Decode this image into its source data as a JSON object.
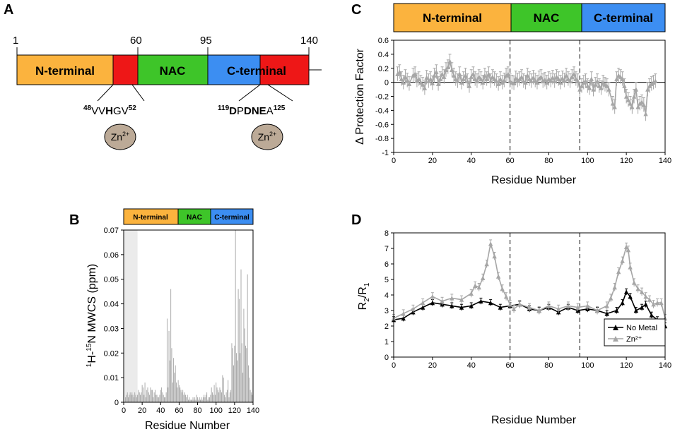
{
  "panel_labels": {
    "a": "A",
    "b": "B",
    "c": "C",
    "d": "D"
  },
  "panel_a": {
    "ruler_labels": [
      "1",
      "60",
      "95",
      "140"
    ],
    "domains": [
      "N-terminal",
      "NAC",
      "C-terminal"
    ],
    "motif_1": {
      "start": "48",
      "seq_a": "VV",
      "bold": "H",
      "seq_b": "GV",
      "end": "52"
    },
    "motif_2": {
      "start": "119",
      "bold_a": "D",
      "plain_a": "P",
      "bold_b": "DNE",
      "plain_b": "A",
      "end": "125"
    },
    "ion": {
      "base": "Zn",
      "sup": "2+"
    }
  },
  "bands": {
    "n_terminal": "N-terminal",
    "nac": "NAC",
    "c_terminal": "C-terminal"
  },
  "colors": {
    "n_terminal": "#FBB33E",
    "nac": "#3EC529",
    "c_terminal": "#3C8EF2",
    "motif": "#EE1717",
    "zinc": "#BCAA97",
    "series_gray": "#A6A6A6",
    "series_black": "#000000",
    "shade": "#EBEBEB"
  },
  "chart_data": [
    {
      "id": "B",
      "type": "bar",
      "title": "",
      "xlabel": "Residue Number",
      "ylabel_parts": {
        "sup1": "1",
        "mid": "H-",
        "sup2": "15",
        "rest": "N MWCS (ppm)"
      },
      "xlim": [
        0,
        140
      ],
      "ylim": [
        0,
        0.07
      ],
      "xticks": [
        "0",
        "20",
        "40",
        "60",
        "80",
        "100",
        "120",
        "140"
      ],
      "yticks": [
        "0",
        "0.01",
        "0.02",
        "0.03",
        "0.04",
        "0.05",
        "0.06",
        "0.07"
      ],
      "shaded_region": [
        0,
        15
      ],
      "x": [
        2,
        3,
        4,
        5,
        6,
        7,
        8,
        9,
        10,
        11,
        12,
        13,
        14,
        15,
        16,
        17,
        18,
        19,
        20,
        21,
        22,
        23,
        24,
        25,
        26,
        27,
        28,
        29,
        30,
        31,
        32,
        33,
        34,
        35,
        36,
        37,
        38,
        39,
        40,
        41,
        42,
        43,
        44,
        45,
        46,
        47,
        48,
        49,
        50,
        51,
        52,
        53,
        54,
        55,
        56,
        57,
        58,
        59,
        60,
        61,
        62,
        63,
        64,
        65,
        66,
        67,
        68,
        69,
        70,
        71,
        72,
        73,
        74,
        75,
        76,
        77,
        78,
        79,
        80,
        81,
        82,
        83,
        84,
        85,
        86,
        87,
        88,
        89,
        90,
        91,
        92,
        93,
        94,
        95,
        96,
        97,
        98,
        99,
        100,
        101,
        102,
        103,
        104,
        105,
        106,
        107,
        108,
        109,
        110,
        111,
        112,
        113,
        114,
        115,
        116,
        117,
        118,
        119,
        120,
        121,
        122,
        123,
        124,
        125,
        126,
        127,
        128,
        129,
        130,
        131,
        132,
        133,
        134,
        135,
        136,
        137,
        138,
        139,
        140
      ],
      "values": [
        0.002,
        0.003,
        0.004,
        0.002,
        0.003,
        0.004,
        0.003,
        0.004,
        0.003,
        0.002,
        0.004,
        0.003,
        0.002,
        0.003,
        0.005,
        0.004,
        0.003,
        0.004,
        0.007,
        0.006,
        0.003,
        0.008,
        0.002,
        0.005,
        0.006,
        0.004,
        0.003,
        0.006,
        0.005,
        0.005,
        0.002,
        0.004,
        0.005,
        0.003,
        0.003,
        0.002,
        0.002,
        0.003,
        0.005,
        0.006,
        0.004,
        0.003,
        0.002,
        0.002,
        0.004,
        0.034,
        0.006,
        0.029,
        0.017,
        0.046,
        0.022,
        0.008,
        0.018,
        0.012,
        0.015,
        0.008,
        0.006,
        0.009,
        0.007,
        0.006,
        0.005,
        0.004,
        0.005,
        0.003,
        0.004,
        0.003,
        0.002,
        0.003,
        0.001,
        0.002,
        0.001,
        0.001,
        0.001,
        0.002,
        0.001,
        0.002,
        0.001,
        0.003,
        0.002,
        0.001,
        0.002,
        0.001,
        0.002,
        0.001,
        0.002,
        0.003,
        0.002,
        0.003,
        0.004,
        0.001,
        0.002,
        0.002,
        0.003,
        0.006,
        0.004,
        0.003,
        0.007,
        0.003,
        0.008,
        0.006,
        0.005,
        0.004,
        0.006,
        0.005,
        0.004,
        0.011,
        0.01,
        0.003,
        0.002,
        0.004,
        0.005,
        0.009,
        0.002,
        0.004,
        0.005,
        0.024,
        0.022,
        0.015,
        0.023,
        0.07,
        0.02,
        0.017,
        0.046,
        0.042,
        0.02,
        0.054,
        0.024,
        0.012,
        0.038,
        0.03,
        0.023,
        0.022,
        0.052,
        0.015,
        0.01,
        0.005,
        0.004,
        0.003,
        0.005
      ]
    },
    {
      "id": "C",
      "type": "line",
      "title": "",
      "xlabel": "Residue Number",
      "ylabel": "Δ Protection Factor",
      "xlim": [
        0,
        140
      ],
      "ylim": [
        -1,
        0.6
      ],
      "xticks": [
        "0",
        "20",
        "40",
        "60",
        "80",
        "100",
        "120",
        "140"
      ],
      "yticks": [
        "0.6",
        "0.4",
        "0.2",
        "0",
        "-0.2",
        "-0.4",
        "-0.6",
        "-0.8",
        "-1"
      ],
      "vlines": [
        60,
        96
      ],
      "series": [
        {
          "name": "ΔPF",
          "x": [
            2,
            3,
            4,
            5,
            6,
            7,
            8,
            10,
            11,
            12,
            13,
            14,
            15,
            16,
            17,
            18,
            19,
            20,
            21,
            22,
            23,
            24,
            25,
            26,
            27,
            28,
            29,
            30,
            31,
            32,
            33,
            34,
            35,
            36,
            37,
            38,
            39,
            40,
            41,
            42,
            43,
            44,
            45,
            46,
            47,
            48,
            49,
            50,
            51,
            52,
            53,
            54,
            55,
            56,
            57,
            58,
            59,
            60,
            61,
            62,
            63,
            64,
            65,
            66,
            67,
            68,
            69,
            70,
            71,
            72,
            73,
            74,
            75,
            76,
            77,
            78,
            79,
            80,
            81,
            82,
            83,
            84,
            85,
            86,
            87,
            88,
            89,
            90,
            91,
            92,
            93,
            94,
            95,
            96,
            97,
            98,
            99,
            100,
            101,
            102,
            103,
            104,
            105,
            106,
            107,
            108,
            109,
            110,
            111,
            113,
            114,
            115,
            116,
            117,
            118,
            119,
            120,
            121,
            122,
            123,
            124,
            125,
            126,
            127,
            128,
            129,
            130,
            131,
            132,
            133,
            134,
            135
          ],
          "y": [
            0.12,
            0.15,
            0.05,
            0.0,
            0.08,
            0.03,
            -0.02,
            0.1,
            0.12,
            0.03,
            0.05,
            0.0,
            -0.03,
            -0.08,
            0.07,
            0.02,
            0.05,
            -0.01,
            0.1,
            0.15,
            -0.02,
            0.05,
            0.12,
            0.08,
            0.18,
            0.22,
            0.3,
            0.18,
            0.1,
            0.05,
            0.02,
            0.12,
            0.0,
            0.05,
            0.1,
            0.02,
            -0.05,
            0.08,
            0.12,
            0.05,
            0.02,
            0.08,
            0.05,
            0.0,
            0.1,
            0.05,
            0.12,
            0.02,
            0.08,
            0.05,
            0.02,
            -0.02,
            0.05,
            0.0,
            0.03,
            0.1,
            0.12,
            0.02,
            0.0,
            -0.01,
            0.06,
            0.03,
            0.05,
            0.08,
            0.02,
            0.0,
            0.1,
            0.05,
            0.02,
            0.07,
            0.03,
            0.0,
            0.06,
            0.08,
            0.02,
            0.04,
            0.0,
            0.05,
            0.03,
            0.07,
            0.02,
            0.08,
            0.05,
            0.0,
            0.06,
            0.03,
            0.1,
            0.05,
            0.02,
            0.08,
            0.12,
            0.05,
            0.02,
            -0.1,
            -0.05,
            0.0,
            0.02,
            -0.05,
            -0.08,
            0.05,
            -0.1,
            -0.03,
            0.02,
            -0.05,
            -0.08,
            0.0,
            -0.03,
            -0.05,
            -0.1,
            -0.3,
            -0.35,
            0.05,
            0.1,
            0.08,
            0.05,
            -0.05,
            -0.2,
            -0.25,
            -0.3,
            -0.35,
            -0.2,
            -0.1,
            -0.35,
            -0.3,
            -0.28,
            -0.32,
            -0.45,
            -0.1,
            -0.05,
            -0.02,
            0.0,
            0.02
          ],
          "err": 0.1
        }
      ]
    },
    {
      "id": "D",
      "type": "line",
      "title": "",
      "xlabel": "Residue Number",
      "ylabel_parts": {
        "r": "R",
        "sub1": "2",
        "slash": "/R",
        "sub2": "1"
      },
      "xlim": [
        0,
        140
      ],
      "ylim": [
        0,
        8
      ],
      "xticks": [
        "0",
        "20",
        "40",
        "60",
        "80",
        "100",
        "120",
        "140"
      ],
      "yticks": [
        "0",
        "1",
        "2",
        "3",
        "4",
        "5",
        "6",
        "7",
        "8"
      ],
      "vlines": [
        60,
        96
      ],
      "legend_position": "bottom-right",
      "series": [
        {
          "name": "No Metal",
          "x": [
            0,
            5,
            10,
            15,
            20,
            25,
            30,
            35,
            40,
            45,
            50,
            55,
            60,
            65,
            70,
            75,
            80,
            85,
            90,
            95,
            100,
            105,
            110,
            115,
            118,
            120,
            122,
            125,
            128,
            130,
            133,
            136,
            140
          ],
          "y": [
            2.4,
            2.5,
            2.9,
            3.2,
            3.5,
            3.4,
            3.3,
            3.2,
            3.3,
            3.6,
            3.5,
            3.2,
            3.3,
            3.4,
            3.1,
            3.0,
            3.2,
            2.9,
            3.2,
            3.0,
            3.1,
            3.0,
            2.8,
            3.0,
            3.5,
            4.2,
            3.9,
            3.0,
            3.2,
            3.4,
            2.7,
            2.4,
            2.0
          ],
          "err": 0.2
        },
        {
          "name": "Zn²⁺",
          "x": [
            0,
            5,
            10,
            15,
            20,
            25,
            30,
            35,
            40,
            42,
            44,
            46,
            48,
            50,
            52,
            54,
            56,
            58,
            60,
            62,
            65,
            70,
            75,
            80,
            85,
            90,
            95,
            100,
            105,
            110,
            112,
            114,
            116,
            118,
            120,
            121,
            122,
            124,
            126,
            128,
            130,
            132,
            134,
            136,
            138,
            140
          ],
          "y": [
            2.5,
            2.8,
            3.1,
            3.5,
            3.9,
            3.6,
            3.8,
            3.7,
            4.1,
            4.6,
            4.5,
            5.1,
            6.0,
            7.3,
            6.5,
            5.2,
            4.4,
            3.9,
            3.4,
            3.1,
            3.4,
            3.2,
            3.0,
            3.3,
            3.1,
            3.3,
            3.2,
            3.3,
            3.0,
            3.3,
            3.8,
            4.5,
            5.5,
            6.2,
            7.1,
            6.9,
            5.8,
            4.8,
            4.4,
            4.2,
            3.9,
            3.7,
            3.4,
            3.5,
            3.5,
            2.5
          ],
          "err": 0.25
        }
      ]
    }
  ]
}
